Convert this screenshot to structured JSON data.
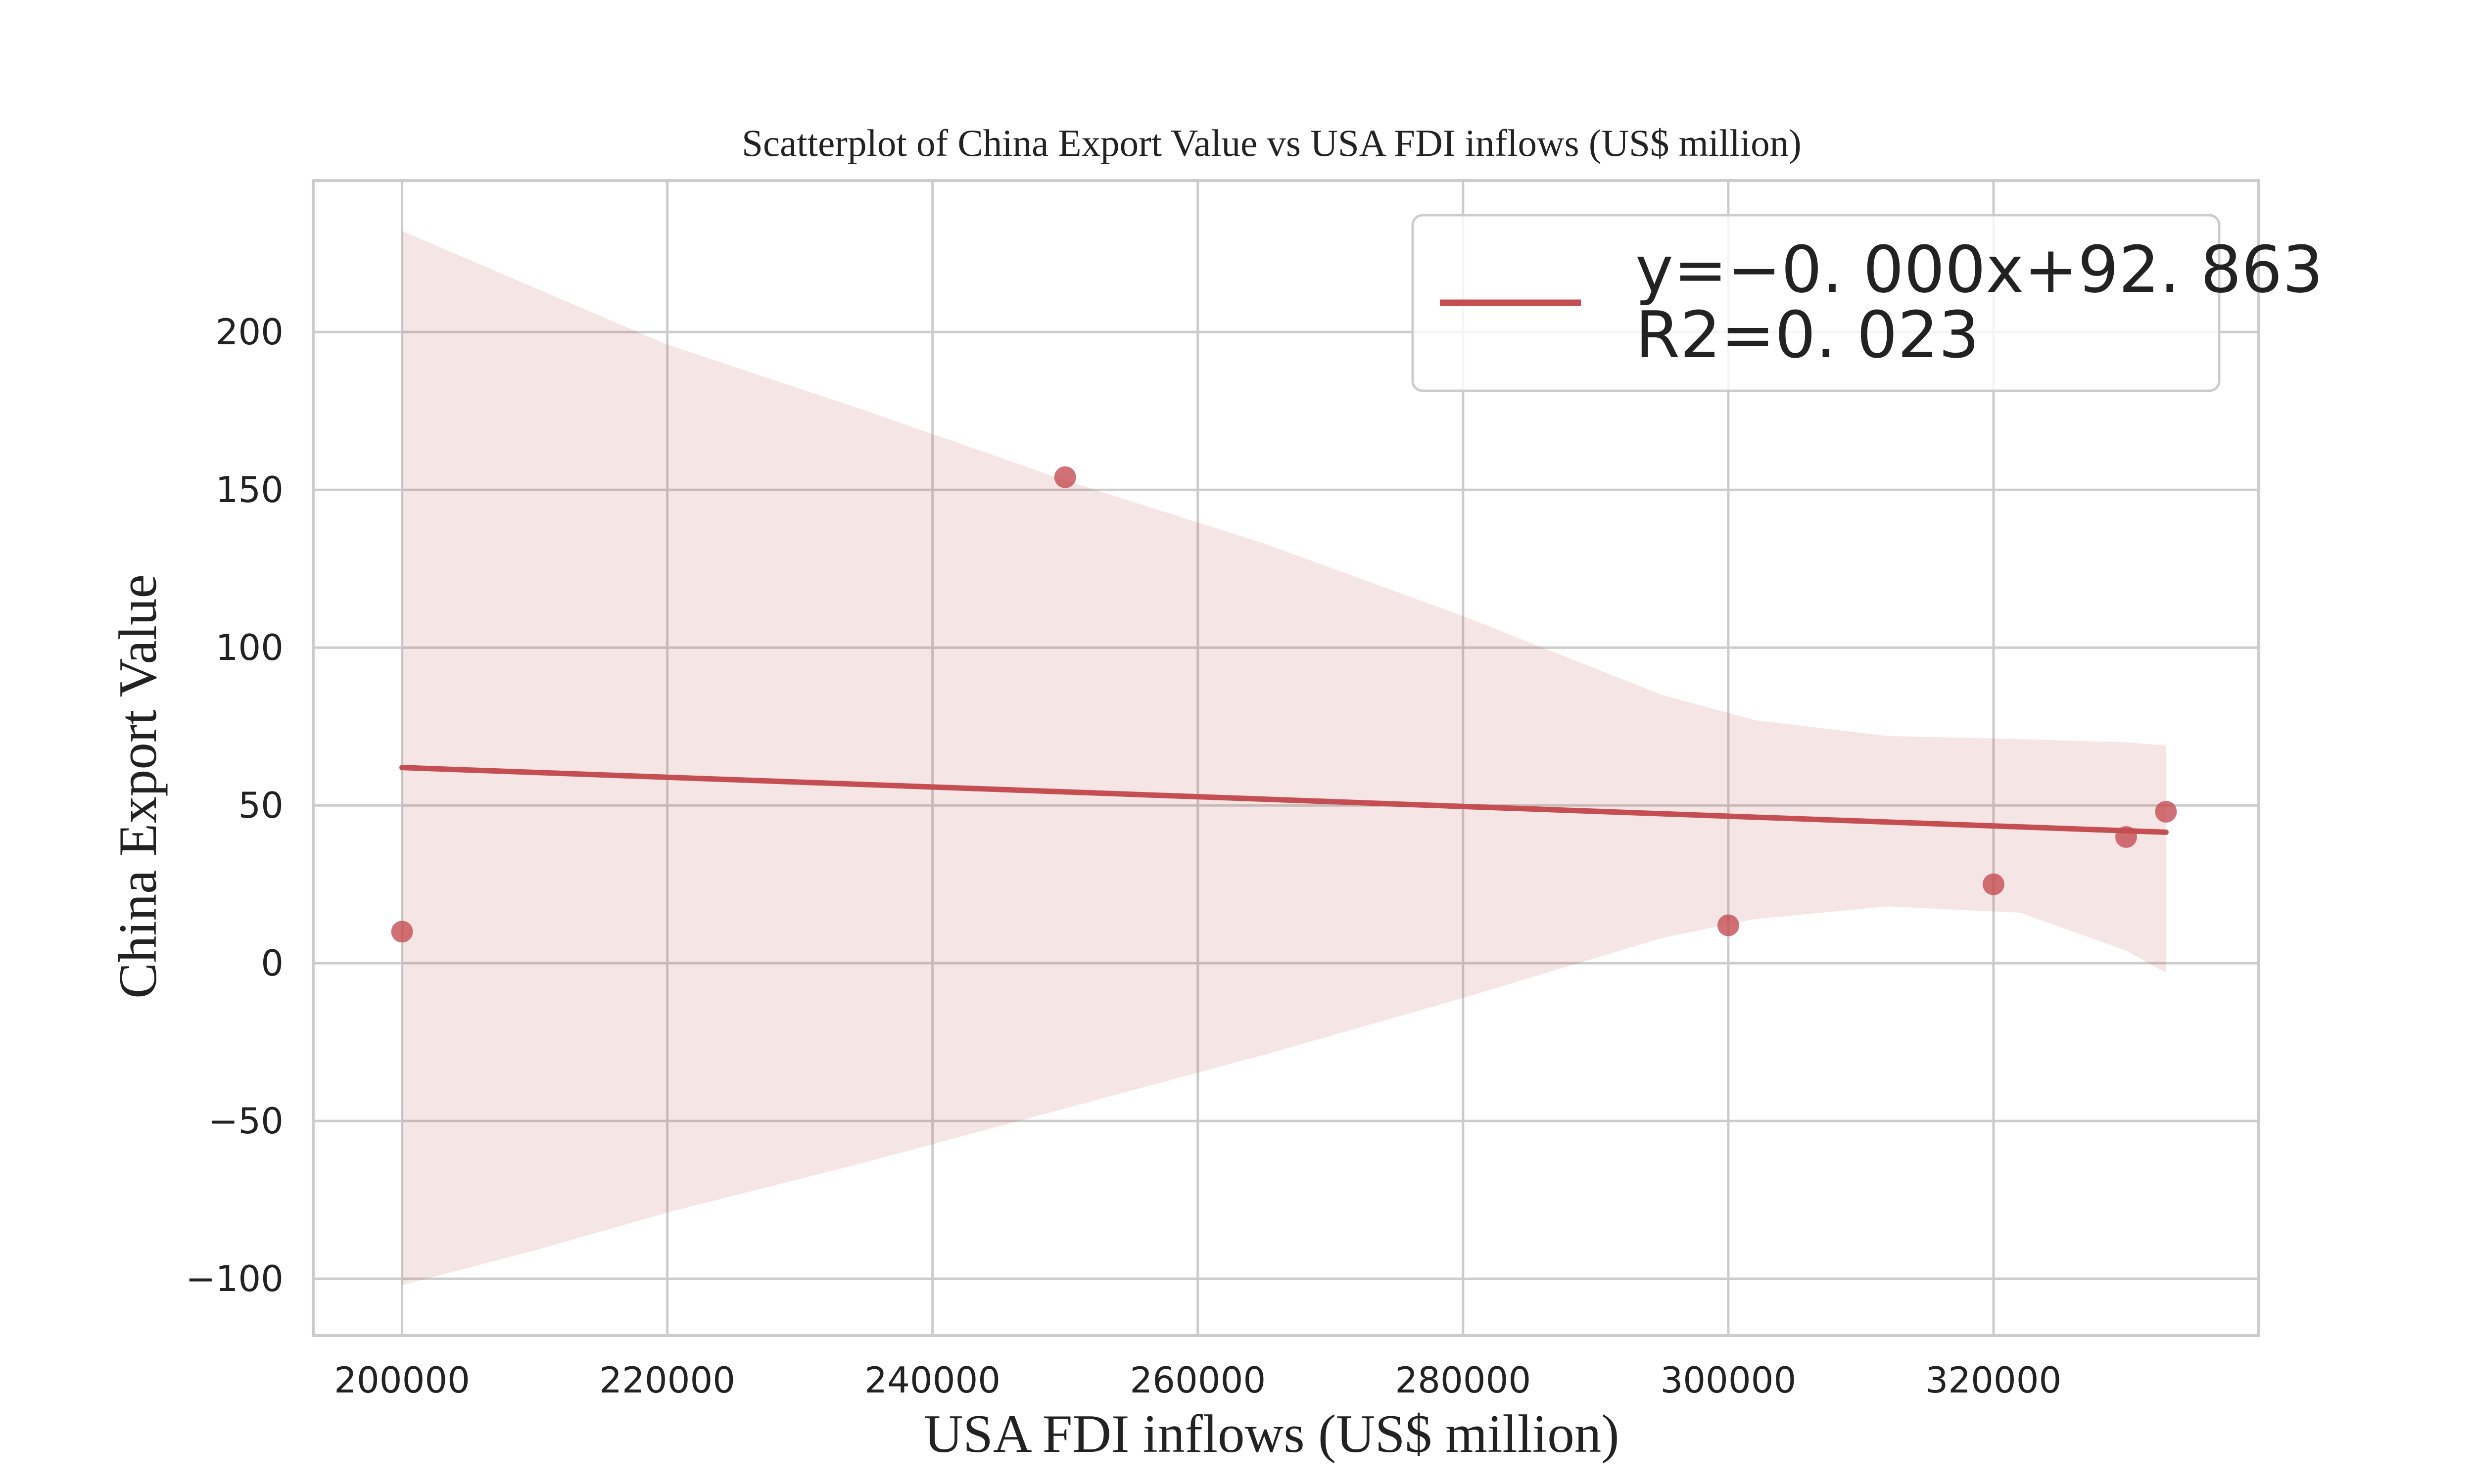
{
  "chart_data": {
    "type": "scatter",
    "title": "Scatterplot of China Export Value vs USA FDI inflows (US$ million)",
    "xlabel": "USA FDI inflows (US$ million)",
    "ylabel": "China Export Value",
    "xlim": [
      193300,
      340000
    ],
    "ylim": [
      -118,
      248
    ],
    "xticks": [
      200000,
      220000,
      240000,
      260000,
      280000,
      300000,
      320000
    ],
    "xtick_labels": [
      "200000",
      "220000",
      "240000",
      "260000",
      "280000",
      "300000",
      "320000"
    ],
    "yticks": [
      -100,
      -50,
      0,
      50,
      100,
      150,
      200
    ],
    "ytick_labels": [
      "−100",
      "−50",
      "0",
      "50",
      "100",
      "150",
      "200"
    ],
    "grid": true,
    "legend_position": "top-right",
    "points": [
      {
        "x": 200000,
        "y": 10
      },
      {
        "x": 250000,
        "y": 154
      },
      {
        "x": 300000,
        "y": 12
      },
      {
        "x": 320000,
        "y": 25
      },
      {
        "x": 330000,
        "y": 40
      },
      {
        "x": 333000,
        "y": 48
      }
    ],
    "regression": {
      "x": [
        200000,
        333000
      ],
      "y": [
        62,
        41.5
      ],
      "legend_lines": [
        "y=−0. 000x+92. 863",
        "R2=0. 023"
      ]
    },
    "confidence_band": {
      "x": [
        200000,
        210000,
        220000,
        235000,
        250000,
        265000,
        280000,
        295000,
        302000,
        312000,
        322000,
        330000,
        333000
      ],
      "upper": [
        232,
        214,
        196,
        175,
        153,
        133,
        110,
        85,
        77,
        72,
        71,
        70,
        69
      ],
      "lower": [
        -102,
        -91,
        -79,
        -63,
        -46,
        -29,
        -11,
        8,
        14,
        18,
        16,
        4,
        -3
      ]
    },
    "colors": {
      "series": "#c44e52",
      "grid": "#cccccc"
    }
  }
}
